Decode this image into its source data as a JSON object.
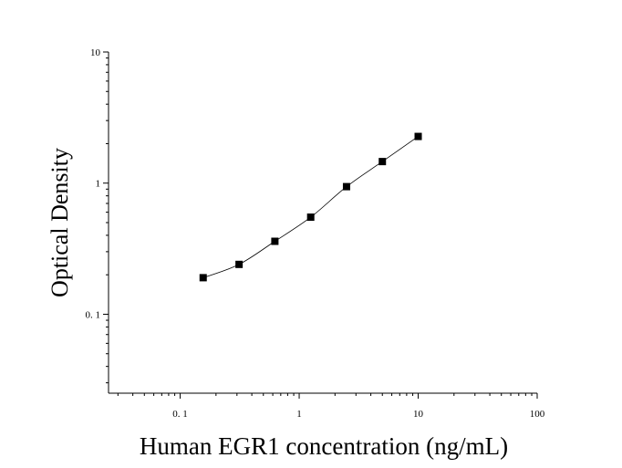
{
  "chart_data": {
    "type": "scatter",
    "xlabel": "Human EGR1 concentration (ng/mL)",
    "ylabel": "Optical Density",
    "x_scale": "log",
    "y_scale": "log",
    "xlim": [
      0.025,
      100
    ],
    "ylim": [
      0.025,
      10
    ],
    "x_ticks": [
      {
        "value": 0.1,
        "label": "0. 1"
      },
      {
        "value": 1,
        "label": "1"
      },
      {
        "value": 10,
        "label": "10"
      },
      {
        "value": 100,
        "label": "100"
      }
    ],
    "y_ticks": [
      {
        "value": 0.1,
        "label": "0. 1"
      },
      {
        "value": 1,
        "label": "1"
      },
      {
        "value": 10,
        "label": "10"
      }
    ],
    "grid": false,
    "series": [
      {
        "x": [
          0.156,
          0.3125,
          0.625,
          1.25,
          2.5,
          5,
          10
        ],
        "y": [
          0.19,
          0.24,
          0.36,
          0.55,
          0.94,
          1.46,
          2.27
        ],
        "marker": "square",
        "fit_line": true,
        "color": "#000000"
      }
    ]
  }
}
